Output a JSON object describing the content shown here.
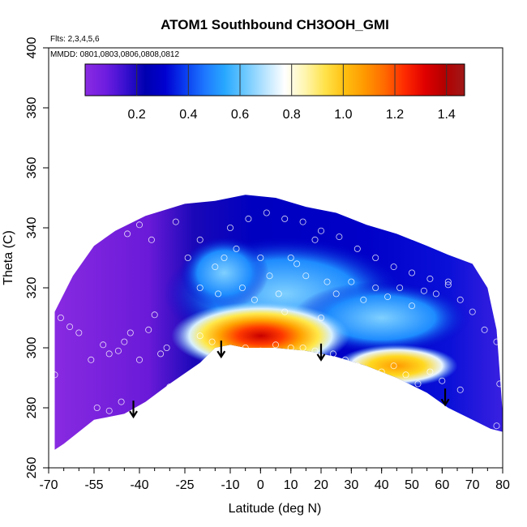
{
  "chart_data": {
    "type": "heatmap",
    "title": "ATOM1 Southbound CH3OOH_GMI",
    "xlabel": "Latitude (deg N)",
    "ylabel": "Theta (C)",
    "xlim": [
      -70,
      80
    ],
    "ylim": [
      260,
      400
    ],
    "x_tick_labels": [
      "-70",
      "-55",
      "-40",
      "-25",
      "-10",
      "0",
      "10",
      "20",
      "30",
      "40",
      "50",
      "60",
      "70",
      "80"
    ],
    "x_tick_values": [
      -70,
      -55,
      -40,
      -25,
      -10,
      0,
      10,
      20,
      30,
      40,
      50,
      60,
      70,
      80
    ],
    "y_ticks": [
      260,
      280,
      300,
      320,
      340,
      360,
      380,
      400
    ],
    "notes": [
      "Flts: 2,3,4,5,6",
      "MMDD: 0801,0803,0806,0808,0812"
    ],
    "colorbar": {
      "range": [
        0,
        1.47
      ],
      "tick_values": [
        0.2,
        0.4,
        0.6,
        0.8,
        1.0,
        1.2,
        1.4
      ],
      "tick_labels": [
        "0.2",
        "0.4",
        "0.6",
        "0.8",
        "1.0",
        "1.2",
        "1.4"
      ],
      "colors": [
        "#8a2be2",
        "#6f1de0",
        "#3a10d0",
        "#0000b0",
        "#0000d0",
        "#0a3cf0",
        "#1e78ff",
        "#28a8ff",
        "#6cc8ff",
        "#b8e4ff",
        "#ffffff",
        "#fff6b0",
        "#ffe24a",
        "#ffc010",
        "#ff9800",
        "#ff6a00",
        "#ff2a00",
        "#e00000",
        "#b40000",
        "#a01818"
      ]
    },
    "arrows": [
      {
        "lat": -42,
        "theta": 277
      },
      {
        "lat": -13,
        "theta": 297
      },
      {
        "lat": 20,
        "theta": 296
      },
      {
        "lat": 61,
        "theta": 281
      }
    ],
    "upper_boundary": [
      [
        -68,
        312
      ],
      [
        -62,
        324
      ],
      [
        -55,
        334
      ],
      [
        -48,
        339
      ],
      [
        -38,
        344
      ],
      [
        -25,
        348
      ],
      [
        -15,
        349
      ],
      [
        -5,
        351
      ],
      [
        5,
        350
      ],
      [
        15,
        347
      ],
      [
        25,
        345
      ],
      [
        35,
        341
      ],
      [
        45,
        338
      ],
      [
        55,
        334
      ],
      [
        62,
        331
      ],
      [
        70,
        328
      ],
      [
        75,
        320
      ],
      [
        78,
        306
      ],
      [
        79,
        292
      ],
      [
        80,
        278
      ],
      [
        80,
        272
      ]
    ],
    "lower_boundary": [
      [
        -68,
        266
      ],
      [
        -65,
        268
      ],
      [
        -55,
        276
      ],
      [
        -45,
        278
      ],
      [
        -38,
        282
      ],
      [
        -30,
        288
      ],
      [
        -20,
        295
      ],
      [
        -15,
        300
      ],
      [
        -10,
        301
      ],
      [
        -5,
        300
      ],
      [
        5,
        300
      ],
      [
        15,
        299
      ],
      [
        25,
        297
      ],
      [
        35,
        294
      ],
      [
        45,
        290
      ],
      [
        55,
        285
      ],
      [
        62,
        280
      ],
      [
        70,
        276
      ],
      [
        76,
        273
      ],
      [
        80,
        272
      ]
    ],
    "core_peak": {
      "lat": 0,
      "theta": 304,
      "value": 1.3
    },
    "secondary_peak": {
      "lat": 45,
      "theta": 294,
      "value": 1.05
    },
    "circles": [
      [
        -68,
        291
      ],
      [
        -66,
        310
      ],
      [
        -63,
        307
      ],
      [
        -60,
        305
      ],
      [
        -56,
        296
      ],
      [
        -52,
        301
      ],
      [
        -50,
        298
      ],
      [
        -47,
        299
      ],
      [
        -45,
        302
      ],
      [
        -43,
        305
      ],
      [
        -40,
        296
      ],
      [
        -37,
        306
      ],
      [
        -35,
        311
      ],
      [
        -33,
        298
      ],
      [
        -31,
        300
      ],
      [
        -54,
        280
      ],
      [
        -50,
        279
      ],
      [
        -46,
        282
      ],
      [
        -42,
        278
      ],
      [
        -30,
        287
      ],
      [
        -44,
        338
      ],
      [
        -40,
        341
      ],
      [
        -36,
        336
      ],
      [
        -28,
        342
      ],
      [
        -20,
        336
      ],
      [
        -15,
        327
      ],
      [
        -12,
        330
      ],
      [
        -8,
        333
      ],
      [
        -6,
        320
      ],
      [
        -2,
        316
      ],
      [
        0,
        330
      ],
      [
        3,
        324
      ],
      [
        6,
        318
      ],
      [
        8,
        312
      ],
      [
        10,
        330
      ],
      [
        12,
        328
      ],
      [
        15,
        324
      ],
      [
        18,
        336
      ],
      [
        20,
        310
      ],
      [
        22,
        322
      ],
      [
        -20,
        304
      ],
      [
        -16,
        302
      ],
      [
        -10,
        299
      ],
      [
        -5,
        300
      ],
      [
        0,
        299
      ],
      [
        5,
        301
      ],
      [
        10,
        300
      ],
      [
        14,
        300
      ],
      [
        18,
        299
      ],
      [
        24,
        298
      ],
      [
        28,
        296
      ],
      [
        32,
        294
      ],
      [
        36,
        291
      ],
      [
        40,
        292
      ],
      [
        44,
        294
      ],
      [
        48,
        291
      ],
      [
        52,
        288
      ],
      [
        56,
        292
      ],
      [
        60,
        289
      ],
      [
        66,
        286
      ],
      [
        25,
        318
      ],
      [
        30,
        322
      ],
      [
        34,
        316
      ],
      [
        38,
        320
      ],
      [
        42,
        317
      ],
      [
        46,
        320
      ],
      [
        50,
        314
      ],
      [
        54,
        319
      ],
      [
        58,
        318
      ],
      [
        62,
        322
      ],
      [
        66,
        316
      ],
      [
        70,
        312
      ],
      [
        74,
        306
      ],
      [
        78,
        302
      ],
      [
        79,
        288
      ],
      [
        78,
        274
      ],
      [
        -24,
        330
      ],
      [
        -20,
        320
      ],
      [
        -14,
        318
      ],
      [
        -10,
        340
      ],
      [
        -4,
        343
      ],
      [
        2,
        345
      ],
      [
        8,
        343
      ],
      [
        14,
        342
      ],
      [
        20,
        339
      ],
      [
        26,
        337
      ],
      [
        32,
        333
      ],
      [
        38,
        330
      ],
      [
        44,
        327
      ],
      [
        50,
        325
      ],
      [
        56,
        323
      ],
      [
        62,
        321
      ]
    ]
  }
}
